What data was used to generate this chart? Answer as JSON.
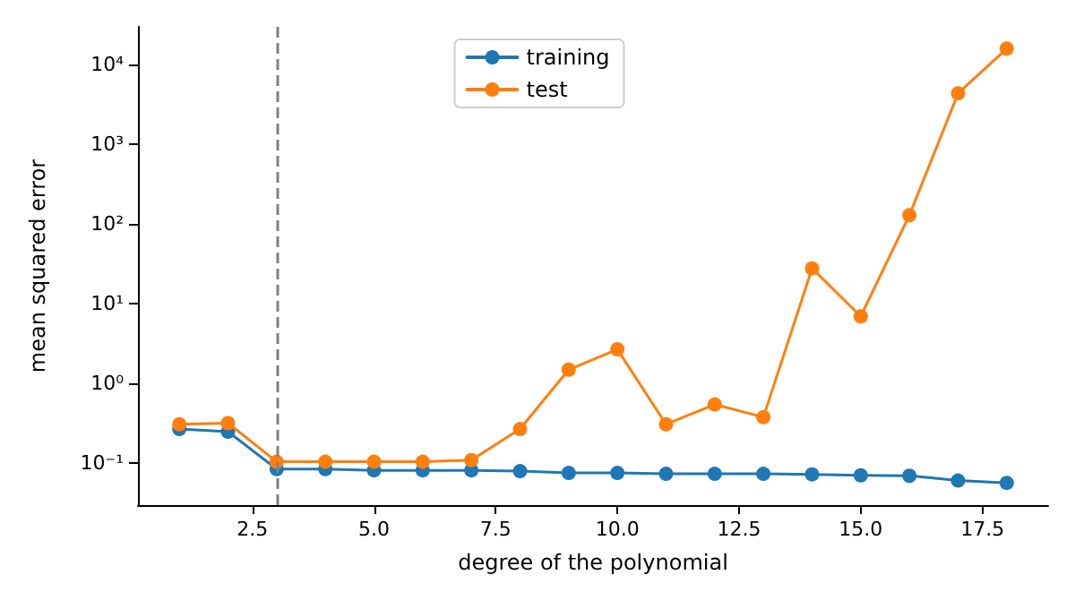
{
  "chart_data": {
    "type": "line",
    "xlabel": "degree of the polynomial",
    "ylabel": "mean squared error",
    "x": [
      1,
      2,
      3,
      4,
      5,
      6,
      7,
      8,
      9,
      10,
      11,
      12,
      13,
      14,
      15,
      16,
      17,
      18
    ],
    "series": [
      {
        "name": "training",
        "color": "#1f77b4",
        "values": [
          0.27,
          0.25,
          0.085,
          0.085,
          0.082,
          0.082,
          0.082,
          0.08,
          0.076,
          0.076,
          0.074,
          0.074,
          0.074,
          0.073,
          0.071,
          0.07,
          0.061,
          0.057
        ]
      },
      {
        "name": "test",
        "color": "#ff7f0e",
        "values": [
          0.31,
          0.32,
          0.105,
          0.105,
          0.105,
          0.105,
          0.11,
          0.27,
          1.5,
          2.7,
          0.31,
          0.55,
          0.38,
          28,
          7,
          130,
          4400,
          16000
        ]
      }
    ],
    "xlim": [
      0.15,
      18.85
    ],
    "xticks": [
      2.5,
      {
        "value": 5,
        "label": "5.0"
      },
      7.5,
      {
        "value": 10,
        "label": "10.0"
      },
      12.5,
      {
        "value": 15,
        "label": "15.0"
      },
      17.5
    ],
    "ylim": [
      0.03,
      30000
    ],
    "yticks": [
      {
        "value": 0.1,
        "label": "10⁻¹"
      },
      {
        "value": 1,
        "label": "10⁰"
      },
      {
        "value": 10,
        "label": "10¹"
      },
      {
        "value": 100,
        "label": "10²"
      },
      {
        "value": 1000,
        "label": "10³"
      },
      {
        "value": 10000,
        "label": "10⁴"
      }
    ],
    "log": "y",
    "ref_lines": [
      {
        "axis": "x",
        "value": 3,
        "color": "#808080",
        "line_style": "dashed"
      }
    ],
    "legend": "top",
    "grid": false,
    "marker": "circle",
    "line_style": "solid"
  }
}
